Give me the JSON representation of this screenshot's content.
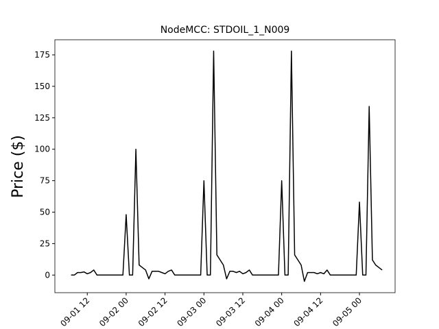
{
  "chart_data": {
    "type": "line",
    "title": "NodeMCC: STDOIL_1_N009",
    "y_label": "Price ($)",
    "x": [
      "09-01 07",
      "09-01 08",
      "09-01 09",
      "09-01 10",
      "09-01 11",
      "09-01 12",
      "09-01 13",
      "09-01 14",
      "09-01 15",
      "09-01 16",
      "09-01 17",
      "09-01 18",
      "09-01 19",
      "09-01 20",
      "09-01 21",
      "09-01 22",
      "09-01 23",
      "09-02 00",
      "09-02 01",
      "09-02 02",
      "09-02 03",
      "09-02 04",
      "09-02 05",
      "09-02 06",
      "09-02 07",
      "09-02 08",
      "09-02 09",
      "09-02 10",
      "09-02 11",
      "09-02 12",
      "09-02 13",
      "09-02 14",
      "09-02 15",
      "09-02 16",
      "09-02 17",
      "09-02 18",
      "09-02 19",
      "09-02 20",
      "09-02 21",
      "09-02 22",
      "09-02 23",
      "09-03 00",
      "09-03 01",
      "09-03 02",
      "09-03 03",
      "09-03 04",
      "09-03 05",
      "09-03 06",
      "09-03 07",
      "09-03 08",
      "09-03 09",
      "09-03 10",
      "09-03 11",
      "09-03 12",
      "09-03 13",
      "09-03 14",
      "09-03 15",
      "09-03 16",
      "09-03 17",
      "09-03 18",
      "09-03 19",
      "09-03 20",
      "09-03 21",
      "09-03 22",
      "09-03 23",
      "09-04 00",
      "09-04 01",
      "09-04 02",
      "09-04 03",
      "09-04 04",
      "09-04 05",
      "09-04 06",
      "09-04 07",
      "09-04 08",
      "09-04 09",
      "09-04 10",
      "09-04 11",
      "09-04 12",
      "09-04 13",
      "09-04 14",
      "09-04 15",
      "09-04 16",
      "09-04 17",
      "09-04 18",
      "09-04 19",
      "09-04 20",
      "09-04 21",
      "09-04 22",
      "09-04 23",
      "09-05 00",
      "09-05 01",
      "09-05 02",
      "09-05 03",
      "09-05 04",
      "09-05 05",
      "09-05 06",
      "09-05 07"
    ],
    "series": [
      {
        "name": "Price",
        "color": "#000000",
        "values": [
          0,
          0,
          2,
          2,
          2.5,
          1,
          2,
          4,
          0,
          0,
          0,
          0,
          0,
          0,
          0,
          0,
          0,
          48,
          0,
          0,
          100,
          8,
          6,
          4,
          -3,
          3,
          3,
          3,
          2,
          1,
          3,
          4,
          0,
          0,
          0,
          0,
          0,
          0,
          0,
          0,
          0,
          75,
          0,
          0,
          178,
          16,
          12,
          8,
          -3,
          3,
          3,
          2,
          3,
          1,
          2,
          4,
          0,
          0,
          0,
          0,
          0,
          0,
          0,
          0,
          0,
          75,
          0,
          0,
          178,
          16,
          12,
          8,
          -5,
          2,
          2,
          2,
          1,
          2,
          1,
          4,
          0,
          0,
          0,
          0,
          0,
          0,
          0,
          0,
          0,
          58,
          0,
          0,
          134,
          12,
          8,
          6,
          4
        ]
      }
    ],
    "xlim": [
      "09-01 02",
      "09-05 11"
    ],
    "xticks": [
      "09-01 12",
      "09-02 00",
      "09-02 12",
      "09-03 00",
      "09-03 12",
      "09-04 00",
      "09-04 12",
      "09-05 00"
    ],
    "ylim": [
      -14,
      187
    ],
    "yticks": [
      0,
      25,
      50,
      75,
      100,
      125,
      150,
      175
    ],
    "grid": false
  }
}
